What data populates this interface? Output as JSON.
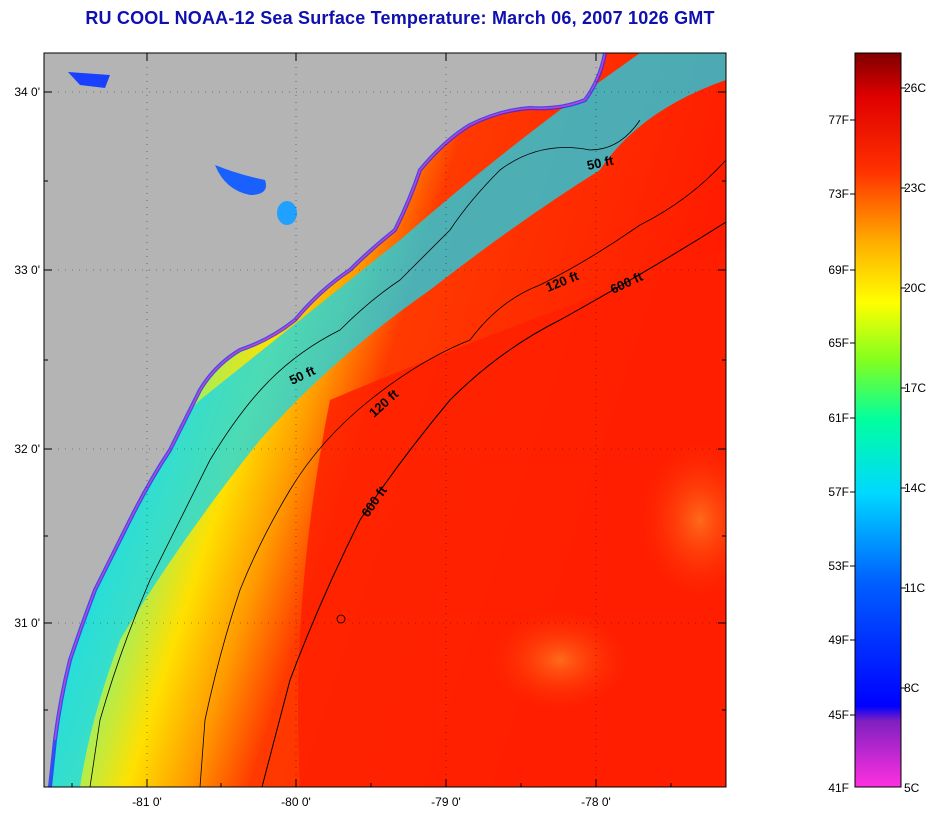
{
  "title": "RU COOL  NOAA-12  Sea Surface Temperature:  March 06, 2007 1026 GMT",
  "map": {
    "lat_labels": [
      "34 0'",
      "33 0'",
      "32 0'",
      "31 0'"
    ],
    "lon_labels": [
      "-81 0'",
      "-80 0'",
      "-79 0'",
      "-78 0'"
    ],
    "contour_labels": [
      "50 ft",
      "50 ft",
      "120 ft",
      "120 ft",
      "600 ft",
      "600 ft"
    ],
    "colors": {
      "land": "#b4b4b4",
      "warm": "#ff1a00",
      "cool": "#00e0ff"
    }
  },
  "colorbar": {
    "fahrenheit": [
      "77F",
      "73F",
      "69F",
      "65F",
      "61F",
      "57F",
      "53F",
      "49F",
      "45F",
      "41F"
    ],
    "celsius": [
      "26C",
      "23C",
      "20C",
      "17C",
      "14C",
      "11C",
      "8C",
      "5C"
    ]
  }
}
